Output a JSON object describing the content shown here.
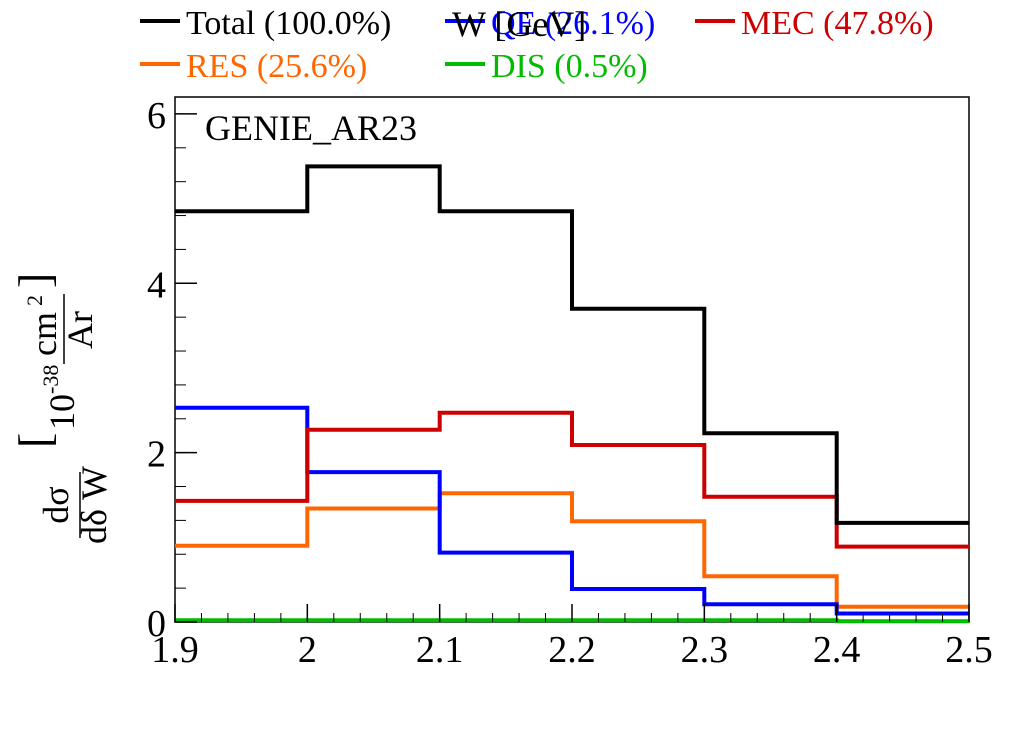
{
  "chart_data": {
    "type": "line",
    "title": "",
    "annotation": "GENIE_AR23",
    "xlabel": "W [GeV]",
    "ylabel": {
      "numerator": "dσ",
      "denominator": "dδ W",
      "unit_prefix": "10",
      "unit_exp": "-38",
      "unit_num": "cm",
      "unit_num_exp": "2",
      "unit_den": "Ar"
    },
    "xlim": [
      1.9,
      2.5
    ],
    "ylim": [
      0,
      6.2
    ],
    "x_ticks": [
      "1.9",
      "2",
      "2.1",
      "2.2",
      "2.3",
      "2.4",
      "2.5"
    ],
    "y_ticks": [
      "0",
      "2",
      "4",
      "6"
    ],
    "bin_edges": [
      1.9,
      2.0,
      2.1,
      2.2,
      2.3,
      2.4,
      2.5
    ],
    "legend_position": "top",
    "series": [
      {
        "name": "Total (100.0%)",
        "color": "#000000",
        "values": [
          4.85,
          5.38,
          4.85,
          3.7,
          2.23,
          1.17
        ]
      },
      {
        "name": "QE (26.1%)",
        "color": "#0000ff",
        "values": [
          2.53,
          1.77,
          0.82,
          0.39,
          0.21,
          0.1
        ]
      },
      {
        "name": "MEC (47.8%)",
        "color": "#cc0000",
        "values": [
          1.43,
          2.27,
          2.47,
          2.09,
          1.48,
          0.89
        ]
      },
      {
        "name": "RES (25.6%)",
        "color": "#ff6600",
        "values": [
          0.9,
          1.34,
          1.52,
          1.19,
          0.54,
          0.18
        ]
      },
      {
        "name": "DIS (0.5%)",
        "color": "#00bb00",
        "values": [
          0.02,
          0.02,
          0.02,
          0.02,
          0.02,
          0.01
        ]
      }
    ]
  }
}
